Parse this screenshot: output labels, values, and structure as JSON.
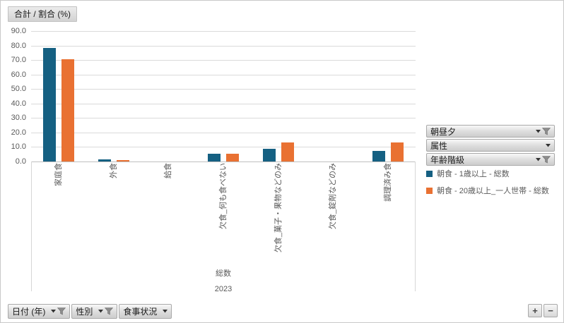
{
  "value_button_label": "合計 / 割合 (%)",
  "chart_data": {
    "type": "bar",
    "title": "合計 / 割合 (%)",
    "categories": [
      "家庭食",
      "外食",
      "給食",
      "欠食_何も食べない",
      "欠食_菓子・果物などのみ",
      "欠食_錠剤などのみ",
      "調理済み食"
    ],
    "series": [
      {
        "name": "朝食 - 1歳以上 - 総数",
        "color": "#156082",
        "values": [
          78.5,
          1.3,
          0,
          5.4,
          8.8,
          0,
          7.1
        ]
      },
      {
        "name": "朝食 - 20歳以上_一人世帯 - 総数",
        "color": "#E97132",
        "values": [
          70.5,
          1.2,
          0,
          5.4,
          13.0,
          0,
          13.0
        ]
      }
    ],
    "y_ticks": [
      "0.0",
      "10.0",
      "20.0",
      "30.0",
      "40.0",
      "50.0",
      "60.0",
      "70.0",
      "80.0",
      "90.0"
    ],
    "ylim": [
      0,
      90
    ],
    "grid": "horizontal",
    "legend_position": "right",
    "group_labels": {
      "level1": "総数",
      "level2": "2023"
    }
  },
  "legend": [
    {
      "label": "朝食 - 1歳以上 - 総数",
      "color": "#156082"
    },
    {
      "label": "朝食 - 20歳以上_一人世帯 - 総数",
      "color": "#E97132"
    }
  ],
  "field_buttons": {
    "right": [
      {
        "label": "朝昼夕",
        "filtered": true
      },
      {
        "label": "属性",
        "filtered": false
      },
      {
        "label": "年齢階級",
        "filtered": true
      }
    ],
    "bottom": [
      {
        "label": "日付 (年)",
        "filtered": true
      },
      {
        "label": "性別",
        "filtered": true
      },
      {
        "label": "食事状況",
        "filtered": false
      }
    ]
  },
  "expanders": {
    "plus": "+",
    "minus": "−"
  },
  "colors": {
    "series1": "#156082",
    "series2": "#E97132",
    "gridline": "#dadada",
    "axis": "#bfbfbf",
    "text": "#595959"
  }
}
